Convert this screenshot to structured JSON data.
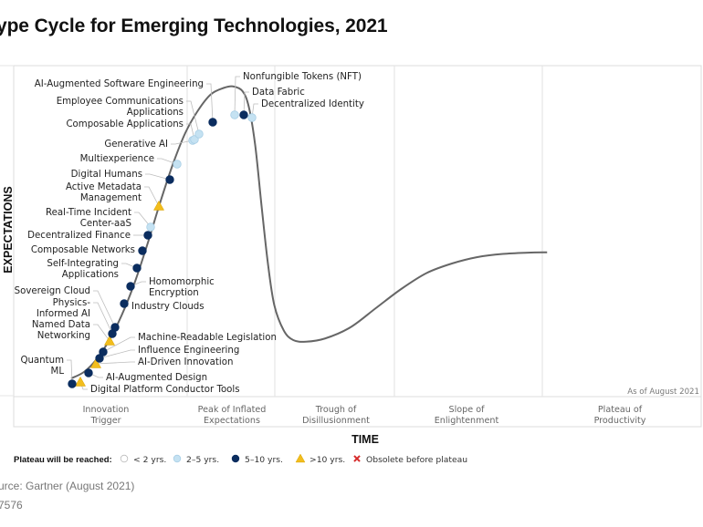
{
  "chart_data": {
    "type": "line",
    "title": "ype Cycle for Emerging Technologies, 2021",
    "xlabel": "TIME",
    "ylabel": "EXPECTATIONS",
    "as_of": "As of August 2021",
    "phases": [
      "Innovation\nTrigger",
      "Peak of Inflated\nExpectations",
      "Trough of\nDisillusionment",
      "Slope of\nEnlightenment",
      "Plateau of\nProductivity"
    ],
    "phase_boundaries": [
      0.2,
      0.4,
      0.6,
      0.8
    ],
    "curve": [
      [
        0.0,
        0.02
      ],
      [
        0.02,
        0.04
      ],
      [
        0.04,
        0.08
      ],
      [
        0.06,
        0.14
      ],
      [
        0.08,
        0.22
      ],
      [
        0.1,
        0.32
      ],
      [
        0.12,
        0.44
      ],
      [
        0.14,
        0.57
      ],
      [
        0.16,
        0.69
      ],
      [
        0.18,
        0.79
      ],
      [
        0.2,
        0.86
      ],
      [
        0.22,
        0.91
      ],
      [
        0.24,
        0.93
      ],
      [
        0.255,
        0.935
      ],
      [
        0.27,
        0.92
      ],
      [
        0.28,
        0.87
      ],
      [
        0.29,
        0.75
      ],
      [
        0.3,
        0.56
      ],
      [
        0.31,
        0.38
      ],
      [
        0.32,
        0.25
      ],
      [
        0.335,
        0.17
      ],
      [
        0.35,
        0.14
      ],
      [
        0.37,
        0.135
      ],
      [
        0.4,
        0.145
      ],
      [
        0.44,
        0.18
      ],
      [
        0.48,
        0.24
      ],
      [
        0.52,
        0.3
      ],
      [
        0.56,
        0.35
      ],
      [
        0.6,
        0.38
      ],
      [
        0.64,
        0.4
      ],
      [
        0.68,
        0.41
      ],
      [
        0.72,
        0.414
      ],
      [
        0.75,
        0.415
      ]
    ],
    "legend_title": "Plateau will be reached:",
    "legend": [
      {
        "key": "lt2",
        "label": "< 2 yrs."
      },
      {
        "key": "2to5",
        "label": "2–5 yrs."
      },
      {
        "key": "5to10",
        "label": "5–10 yrs."
      },
      {
        "key": "gt10",
        "label": ">10 yrs."
      },
      {
        "key": "obsolete",
        "label": "Obsolete before plateau"
      }
    ],
    "colors": {
      "lt2": "#ffffff",
      "2to5": "#c5e2f2",
      "5to10": "#0b2d5f",
      "gt10": "#f2bd1d",
      "obsolete": "#d62b2b",
      "curve": "#666666",
      "grid": "#e2e2e2"
    },
    "technologies": [
      {
        "name": "Digital Platform Conductor Tools",
        "t": 0.01,
        "cat": "gt10"
      },
      {
        "name": "Quantum\nML",
        "t": 0.0,
        "cat": "5to10"
      },
      {
        "name": "AI-Augmented Design",
        "t": 0.025,
        "cat": "5to10"
      },
      {
        "name": "AI-Driven Innovation",
        "t": 0.036,
        "cat": "gt10"
      },
      {
        "name": "Influence Engineering",
        "t": 0.043,
        "cat": "5to10"
      },
      {
        "name": "Machine-Readable Legislation",
        "t": 0.048,
        "cat": "5to10"
      },
      {
        "name": "Named Data\nNetworking",
        "t": 0.055,
        "cat": "gt10"
      },
      {
        "name": "Physics-\nInformed AI",
        "t": 0.062,
        "cat": "5to10"
      },
      {
        "name": "Sovereign Cloud",
        "t": 0.066,
        "cat": "5to10"
      },
      {
        "name": "Industry Clouds",
        "t": 0.084,
        "cat": "5to10"
      },
      {
        "name": "Homomorphic\nEncryption",
        "t": 0.093,
        "cat": "5to10"
      },
      {
        "name": "Self-Integrating\nApplications",
        "t": 0.102,
        "cat": "5to10"
      },
      {
        "name": "Composable Networks",
        "t": 0.113,
        "cat": "5to10"
      },
      {
        "name": "Decentralized Finance",
        "t": 0.121,
        "cat": "5to10"
      },
      {
        "name": "Real-Time Incident\nCenter-aaS",
        "t": 0.125,
        "cat": "2to5"
      },
      {
        "name": "Active Metadata\nManagement",
        "t": 0.131,
        "cat": "gt10"
      },
      {
        "name": "Digital Humans",
        "t": 0.142,
        "cat": "5to10"
      },
      {
        "name": "Multiexperience",
        "t": 0.153,
        "cat": "2to5"
      },
      {
        "name": "Generative AI",
        "t": 0.173,
        "cat": "2to5"
      },
      {
        "name": "Composable Applications",
        "t": 0.178,
        "cat": "2to5"
      },
      {
        "name": "Employee Communications\nApplications",
        "t": 0.182,
        "cat": "2to5"
      },
      {
        "name": "AI-Augmented Software Engineering",
        "t": 0.199,
        "cat": "5to10"
      },
      {
        "name": "Nonfungible Tokens (NFT)",
        "t": 0.236,
        "cat": "2to5"
      },
      {
        "name": "Data Fabric",
        "t": 0.246,
        "cat": "5to10"
      },
      {
        "name": "Decentralized Identity",
        "t": 0.259,
        "cat": "2to5"
      }
    ]
  },
  "footer": {
    "source": "urce: Gartner (August 2021)",
    "id": "7576"
  }
}
